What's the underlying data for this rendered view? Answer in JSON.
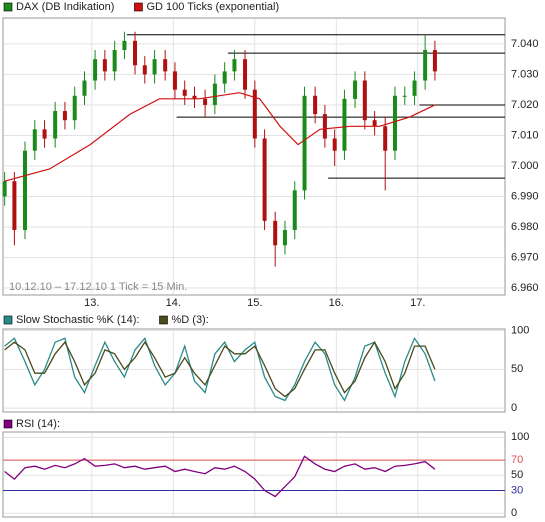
{
  "chart_data": [
    {
      "type": "candlestick",
      "name": "DAX (DB Indikation)",
      "color": "#1a8a1a",
      "up_color": "#1a8a1a",
      "down_color": "#b01010",
      "annotation": "10.12.10 – 17.12.10   1 Tick = 15 Min.",
      "x": [
        11.93,
        12.05,
        12.18,
        12.3,
        12.42,
        12.55,
        12.67,
        12.79,
        12.91,
        13.04,
        13.16,
        13.28,
        13.4,
        13.53,
        13.65,
        13.77,
        13.9,
        14.02,
        14.14,
        14.26,
        14.39,
        14.51,
        14.63,
        14.75,
        14.88,
        15.0,
        15.12,
        15.25,
        15.37,
        15.49,
        15.61,
        15.74,
        15.86,
        15.98,
        16.1,
        16.23,
        16.35,
        16.47,
        16.6,
        16.72,
        16.84,
        16.96,
        17.09,
        17.21
      ],
      "open": [
        6990,
        6995,
        6979,
        7005,
        7012,
        7009,
        7018,
        7015,
        7023,
        7028,
        7035,
        7031,
        7038,
        7041,
        7033,
        7030,
        7035,
        7031,
        7025,
        7023,
        7022,
        7020,
        7027,
        7031,
        7035,
        7025,
        7009,
        6982,
        6974,
        6979,
        6992,
        7023,
        7017,
        7009,
        7005,
        7022,
        7028,
        7015,
        7013,
        7005,
        7023,
        7023,
        7028,
        7038
      ],
      "high": [
        6998,
        6998,
        7008,
        7015,
        7015,
        7021,
        7021,
        7026,
        7031,
        7038,
        7038,
        7041,
        7044,
        7044,
        7036,
        7038,
        7038,
        7034,
        7028,
        7026,
        7025,
        7030,
        7034,
        7038,
        7038,
        7028,
        7012,
        6985,
        6982,
        6995,
        7026,
        7026,
        7020,
        7012,
        7025,
        7031,
        7031,
        7018,
        7016,
        7026,
        7026,
        7031,
        7043,
        7041
      ],
      "low": [
        6987,
        6974,
        6976,
        7002,
        7006,
        7006,
        7012,
        7012,
        7020,
        7025,
        7028,
        7028,
        7035,
        7030,
        7027,
        7027,
        7028,
        7022,
        7020,
        7019,
        7016,
        7017,
        7024,
        7028,
        7022,
        7006,
        6979,
        6967,
        6971,
        6976,
        6989,
        7014,
        7006,
        7000,
        7002,
        7019,
        7012,
        7010,
        6992,
        7002,
        7020,
        7020,
        7025,
        7028
      ],
      "close": [
        6995,
        6979,
        7005,
        7012,
        7009,
        7018,
        7015,
        7023,
        7028,
        7035,
        7031,
        7038,
        7041,
        7033,
        7030,
        7035,
        7031,
        7025,
        7023,
        7022,
        7020,
        7027,
        7031,
        7035,
        7025,
        7009,
        6982,
        6974,
        6979,
        6992,
        7023,
        7017,
        7009,
        7005,
        7022,
        7028,
        7015,
        7013,
        7005,
        7023,
        7023,
        7028,
        7038,
        7031
      ],
      "overlay": {
        "name": "GD 100 Ticks (exponential)",
        "color": "#d01010",
        "x": [
          11.93,
          12.48,
          12.98,
          13.47,
          13.83,
          14.32,
          14.81,
          15.06,
          15.31,
          15.53,
          15.8,
          16.17,
          16.53,
          16.9,
          17.21
        ],
        "values": [
          6995,
          6999,
          7007,
          7017,
          7022,
          7022,
          7024,
          7022,
          7013,
          7007,
          7012,
          7013,
          7013,
          7016,
          7020
        ]
      },
      "levels": [
        {
          "value": 7043,
          "from": 13.43
        },
        {
          "value": 7037,
          "from": 14.67
        },
        {
          "value": 7020,
          "from": 17.02
        },
        {
          "value": 7016,
          "from": 14.04
        },
        {
          "value": 6996,
          "from": 15.9
        }
      ],
      "xlim": [
        11.91,
        18.07
      ],
      "xticks": [
        {
          "value": 13,
          "label": "13."
        },
        {
          "value": 14,
          "label": "14."
        },
        {
          "value": 15,
          "label": "15."
        },
        {
          "value": 16,
          "label": "16."
        },
        {
          "value": 17,
          "label": "17."
        }
      ],
      "ylim": [
        6957.7,
        7048.5
      ],
      "yticks": [
        {
          "value": 6960,
          "label": "6.960"
        },
        {
          "value": 6970,
          "label": "6.970"
        },
        {
          "value": 6980,
          "label": "6.980"
        },
        {
          "value": 6990,
          "label": "6.990"
        },
        {
          "value": 7000,
          "label": "7.000"
        },
        {
          "value": 7010,
          "label": "7.010"
        },
        {
          "value": 7020,
          "label": "7.020"
        },
        {
          "value": 7030,
          "label": "7.030"
        },
        {
          "value": 7040,
          "label": "7.040"
        }
      ],
      "grid": true
    },
    {
      "type": "line",
      "x": [
        11.93,
        12.05,
        12.18,
        12.3,
        12.42,
        12.55,
        12.67,
        12.79,
        12.91,
        13.04,
        13.16,
        13.28,
        13.4,
        13.53,
        13.65,
        13.77,
        13.9,
        14.02,
        14.14,
        14.26,
        14.39,
        14.51,
        14.63,
        14.75,
        14.88,
        15.0,
        15.12,
        15.25,
        15.37,
        15.49,
        15.61,
        15.74,
        15.86,
        15.98,
        16.1,
        16.23,
        16.35,
        16.47,
        16.6,
        16.72,
        16.84,
        16.96,
        17.09,
        17.21
      ],
      "series": [
        {
          "name": "Slow Stochastic %K (14):",
          "color": "#2a8a8a",
          "values": [
            80,
            90,
            60,
            30,
            50,
            85,
            90,
            40,
            20,
            55,
            85,
            60,
            40,
            75,
            90,
            55,
            30,
            45,
            80,
            35,
            20,
            70,
            85,
            60,
            75,
            85,
            40,
            15,
            10,
            30,
            60,
            85,
            70,
            30,
            10,
            40,
            80,
            85,
            45,
            15,
            60,
            90,
            70,
            35
          ]
        },
        {
          "name": "%D (3):",
          "color": "#4a4a1a",
          "values": [
            75,
            85,
            75,
            45,
            45,
            70,
            85,
            60,
            30,
            45,
            75,
            70,
            50,
            65,
            85,
            65,
            40,
            45,
            65,
            45,
            30,
            55,
            80,
            70,
            70,
            80,
            55,
            25,
            15,
            25,
            50,
            75,
            75,
            45,
            20,
            35,
            65,
            85,
            60,
            25,
            45,
            80,
            80,
            50
          ]
        }
      ],
      "xlim": [
        11.91,
        18.07
      ],
      "ylim": [
        -5,
        102
      ],
      "yticks": [
        0,
        50,
        100
      ],
      "grid": true
    },
    {
      "type": "line",
      "x": [
        11.93,
        12.05,
        12.18,
        12.3,
        12.42,
        12.55,
        12.67,
        12.79,
        12.91,
        13.04,
        13.16,
        13.28,
        13.4,
        13.53,
        13.65,
        13.77,
        13.9,
        14.02,
        14.14,
        14.26,
        14.39,
        14.51,
        14.63,
        14.75,
        14.88,
        15.0,
        15.12,
        15.25,
        15.37,
        15.49,
        15.61,
        15.74,
        15.86,
        15.98,
        16.1,
        16.23,
        16.35,
        16.47,
        16.6,
        16.72,
        16.84,
        16.96,
        17.09,
        17.21
      ],
      "series": [
        {
          "name": "RSI (14):",
          "color": "#800080",
          "values": [
            55,
            45,
            60,
            62,
            58,
            63,
            60,
            65,
            72,
            62,
            63,
            65,
            60,
            62,
            58,
            60,
            62,
            55,
            58,
            55,
            52,
            60,
            58,
            62,
            55,
            45,
            30,
            22,
            35,
            48,
            75,
            65,
            58,
            55,
            62,
            65,
            58,
            60,
            55,
            62,
            63,
            65,
            68,
            58
          ]
        }
      ],
      "bands": [
        {
          "value": 70,
          "color": "#e05050"
        },
        {
          "value": 30,
          "color": "#3030a0"
        }
      ],
      "xlim": [
        11.91,
        18.07
      ],
      "ylim": [
        -5,
        107
      ],
      "yticks": [
        0,
        30,
        50,
        70,
        100
      ],
      "grid": true
    }
  ]
}
